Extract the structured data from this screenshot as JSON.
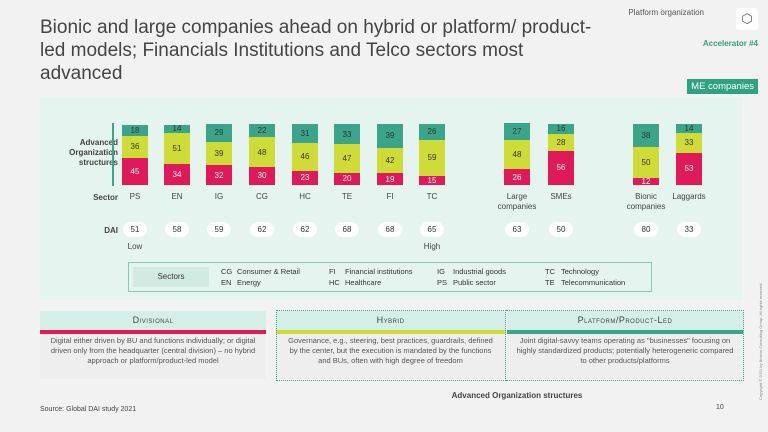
{
  "header": {
    "title": "Bionic and large companies ahead on hybrid or platform/ product-led models; Financials Institutions and Telco sectors most advanced",
    "tag": "Platform organization",
    "accelerator": "Accelerator #4",
    "logo_icon": "network-cube-icon",
    "badge": "ME companies"
  },
  "chart_data": {
    "type": "bar",
    "stacked": true,
    "ylabel": "Advanced Organization structures",
    "xlabel": "Sector",
    "categories": [
      "PS",
      "EN",
      "IG",
      "CG",
      "HC",
      "TE",
      "FI",
      "TC",
      "Large companies",
      "SMEs",
      "Bionic companies",
      "Laggards"
    ],
    "series": [
      {
        "key": "divisional",
        "color": "#e0195a",
        "values": [
          45,
          34,
          32,
          30,
          23,
          20,
          19,
          15,
          26,
          56,
          12,
          53
        ]
      },
      {
        "key": "hybrid",
        "color": "#cfdc37",
        "values": [
          36,
          51,
          39,
          48,
          46,
          47,
          42,
          59,
          48,
          28,
          50,
          33
        ]
      },
      {
        "key": "platform",
        "color": "#3aa58a",
        "values": [
          18,
          14,
          29,
          22,
          31,
          33,
          39,
          26,
          27,
          16,
          38,
          14
        ]
      }
    ],
    "dai_label": "DAI",
    "dai": [
      51,
      58,
      59,
      62,
      62,
      68,
      68,
      65,
      63,
      50,
      80,
      33
    ],
    "low_label": "Low",
    "high_label": "High"
  },
  "legend": {
    "title": "Sectors",
    "items": [
      [
        "CG",
        "Consumer & Retail"
      ],
      [
        "EN",
        "Energy"
      ],
      [
        "FI",
        "Financial institutions"
      ],
      [
        "HC",
        "Healthcare"
      ],
      [
        "IG",
        "Industrial goods"
      ],
      [
        "PS",
        "Public sector"
      ],
      [
        "TC",
        "Technology"
      ],
      [
        "TE",
        "Telecommunication"
      ]
    ]
  },
  "cards": [
    {
      "title": "Divisional",
      "color": "#e0195a",
      "text": "Digital either driven by BU and functions individually; or digital driven only from the headquarter (central division) – no hybrid approach or platform/product-led model"
    },
    {
      "title": "Hybrid",
      "color": "#cfdc37",
      "text": "Governance, e.g., steering, best practices, guardrails, defined by the center, but the execution is mandated by the functions and BUs, often with high degree of freedom"
    },
    {
      "title": "Platform/Product-Led",
      "color": "#3aa58a",
      "text": "Joint digital-savvy teams operating as \"businesses\" focusing on highly standardized products; potentially heterogeneric compared to other products/platforms"
    }
  ],
  "advanced_label": "Advanced Organization structures",
  "source": "Source: Global DAI study 2021",
  "page": "10",
  "copyright": "Copyright © 2021 by Boston Consulting Group. All rights reserved."
}
